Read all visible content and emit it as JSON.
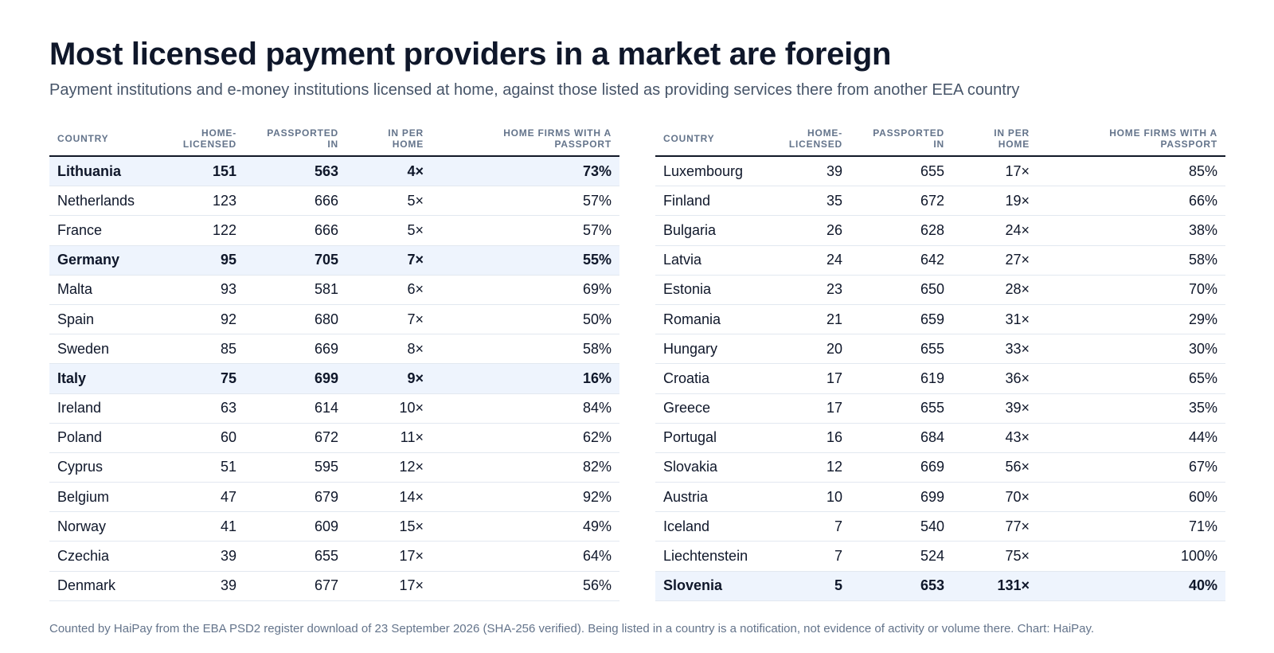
{
  "title": "Most licensed payment providers in a market are foreign",
  "subtitle": "Payment institutions and e-money institutions licensed at home, against those listed as providing services there from another EEA country",
  "footnote": "Counted by HaiPay from the EBA PSD2 register download of 23 September 2026 (SHA-256 verified). Being listed in a country is a notification, not evidence of activity or volume there. Chart: HaiPay.",
  "highlight_color": "#eef4fd",
  "chart_data": {
    "type": "table",
    "columns": [
      "COUNTRY",
      "HOME-\nLICENSED",
      "PASSPORTED\nIN",
      "IN PER\nHOME",
      "HOME FIRMS WITH A\nPASSPORT"
    ],
    "tables": [
      {
        "rows": [
          {
            "country": "Lithuania",
            "home": "151",
            "passported": "563",
            "per_home": "4×",
            "with_passport": "73%",
            "highlight": true
          },
          {
            "country": "Netherlands",
            "home": "123",
            "passported": "666",
            "per_home": "5×",
            "with_passport": "57%",
            "highlight": false
          },
          {
            "country": "France",
            "home": "122",
            "passported": "666",
            "per_home": "5×",
            "with_passport": "57%",
            "highlight": false
          },
          {
            "country": "Germany",
            "home": "95",
            "passported": "705",
            "per_home": "7×",
            "with_passport": "55%",
            "highlight": true
          },
          {
            "country": "Malta",
            "home": "93",
            "passported": "581",
            "per_home": "6×",
            "with_passport": "69%",
            "highlight": false
          },
          {
            "country": "Spain",
            "home": "92",
            "passported": "680",
            "per_home": "7×",
            "with_passport": "50%",
            "highlight": false
          },
          {
            "country": "Sweden",
            "home": "85",
            "passported": "669",
            "per_home": "8×",
            "with_passport": "58%",
            "highlight": false
          },
          {
            "country": "Italy",
            "home": "75",
            "passported": "699",
            "per_home": "9×",
            "with_passport": "16%",
            "highlight": true
          },
          {
            "country": "Ireland",
            "home": "63",
            "passported": "614",
            "per_home": "10×",
            "with_passport": "84%",
            "highlight": false
          },
          {
            "country": "Poland",
            "home": "60",
            "passported": "672",
            "per_home": "11×",
            "with_passport": "62%",
            "highlight": false
          },
          {
            "country": "Cyprus",
            "home": "51",
            "passported": "595",
            "per_home": "12×",
            "with_passport": "82%",
            "highlight": false
          },
          {
            "country": "Belgium",
            "home": "47",
            "passported": "679",
            "per_home": "14×",
            "with_passport": "92%",
            "highlight": false
          },
          {
            "country": "Norway",
            "home": "41",
            "passported": "609",
            "per_home": "15×",
            "with_passport": "49%",
            "highlight": false
          },
          {
            "country": "Czechia",
            "home": "39",
            "passported": "655",
            "per_home": "17×",
            "with_passport": "64%",
            "highlight": false
          },
          {
            "country": "Denmark",
            "home": "39",
            "passported": "677",
            "per_home": "17×",
            "with_passport": "56%",
            "highlight": false
          }
        ]
      },
      {
        "rows": [
          {
            "country": "Luxembourg",
            "home": "39",
            "passported": "655",
            "per_home": "17×",
            "with_passport": "85%",
            "highlight": false
          },
          {
            "country": "Finland",
            "home": "35",
            "passported": "672",
            "per_home": "19×",
            "with_passport": "66%",
            "highlight": false
          },
          {
            "country": "Bulgaria",
            "home": "26",
            "passported": "628",
            "per_home": "24×",
            "with_passport": "38%",
            "highlight": false
          },
          {
            "country": "Latvia",
            "home": "24",
            "passported": "642",
            "per_home": "27×",
            "with_passport": "58%",
            "highlight": false
          },
          {
            "country": "Estonia",
            "home": "23",
            "passported": "650",
            "per_home": "28×",
            "with_passport": "70%",
            "highlight": false
          },
          {
            "country": "Romania",
            "home": "21",
            "passported": "659",
            "per_home": "31×",
            "with_passport": "29%",
            "highlight": false
          },
          {
            "country": "Hungary",
            "home": "20",
            "passported": "655",
            "per_home": "33×",
            "with_passport": "30%",
            "highlight": false
          },
          {
            "country": "Croatia",
            "home": "17",
            "passported": "619",
            "per_home": "36×",
            "with_passport": "65%",
            "highlight": false
          },
          {
            "country": "Greece",
            "home": "17",
            "passported": "655",
            "per_home": "39×",
            "with_passport": "35%",
            "highlight": false
          },
          {
            "country": "Portugal",
            "home": "16",
            "passported": "684",
            "per_home": "43×",
            "with_passport": "44%",
            "highlight": false
          },
          {
            "country": "Slovakia",
            "home": "12",
            "passported": "669",
            "per_home": "56×",
            "with_passport": "67%",
            "highlight": false
          },
          {
            "country": "Austria",
            "home": "10",
            "passported": "699",
            "per_home": "70×",
            "with_passport": "60%",
            "highlight": false
          },
          {
            "country": "Iceland",
            "home": "7",
            "passported": "540",
            "per_home": "77×",
            "with_passport": "71%",
            "highlight": false
          },
          {
            "country": "Liechtenstein",
            "home": "7",
            "passported": "524",
            "per_home": "75×",
            "with_passport": "100%",
            "highlight": false
          },
          {
            "country": "Slovenia",
            "home": "5",
            "passported": "653",
            "per_home": "131×",
            "with_passport": "40%",
            "highlight": true
          }
        ]
      }
    ]
  }
}
